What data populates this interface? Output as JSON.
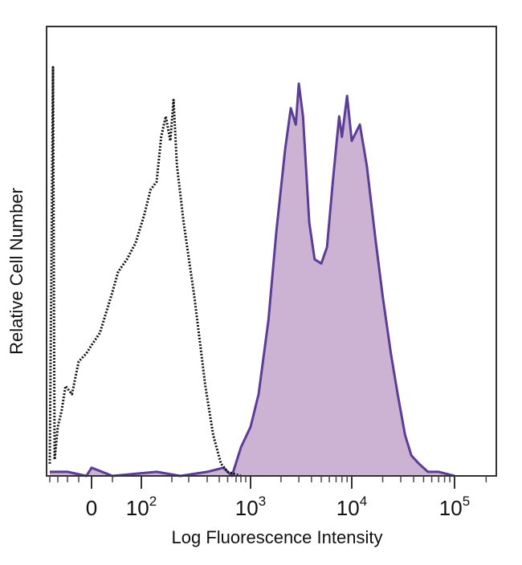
{
  "chart_data": {
    "type": "area",
    "title": "",
    "xlabel": "Log Fluorescence Intensity",
    "ylabel": "Relative Cell Number",
    "x_scale": "biexponential",
    "x_ticks": [
      {
        "value": 0,
        "base": "0",
        "exp": ""
      },
      {
        "value": 100,
        "base": "10",
        "exp": "2"
      },
      {
        "value": 1000,
        "base": "10",
        "exp": "3"
      },
      {
        "value": 10000,
        "base": "10",
        "exp": "4"
      },
      {
        "value": 100000,
        "base": "10",
        "exp": "5"
      }
    ],
    "xlim": [
      -250,
      250000
    ],
    "ylim": [
      0,
      110
    ],
    "grid": false,
    "series": [
      {
        "style": "dotted-black-outline",
        "color": "#111111",
        "points": [
          [
            -200,
            3
          ],
          [
            -180,
            100
          ],
          [
            -170,
            4
          ],
          [
            -150,
            12
          ],
          [
            -130,
            16
          ],
          [
            -110,
            22
          ],
          [
            -80,
            20
          ],
          [
            -50,
            28
          ],
          [
            -20,
            30
          ],
          [
            0,
            32
          ],
          [
            20,
            35
          ],
          [
            35,
            40
          ],
          [
            50,
            45
          ],
          [
            60,
            50
          ],
          [
            75,
            53
          ],
          [
            90,
            57
          ],
          [
            110,
            64
          ],
          [
            130,
            70
          ],
          [
            150,
            72
          ],
          [
            165,
            83
          ],
          [
            180,
            88
          ],
          [
            195,
            82
          ],
          [
            210,
            92
          ],
          [
            230,
            76
          ],
          [
            270,
            62
          ],
          [
            330,
            44
          ],
          [
            390,
            22
          ],
          [
            450,
            10
          ],
          [
            520,
            3
          ],
          [
            600,
            1
          ],
          [
            800,
            0
          ]
        ]
      },
      {
        "style": "filled-purple",
        "color": "#5a3d96",
        "fill": "#ccb3d3",
        "points": [
          [
            -200,
            1
          ],
          [
            -100,
            1
          ],
          [
            -20,
            0
          ],
          [
            0,
            2
          ],
          [
            50,
            0
          ],
          [
            150,
            1
          ],
          [
            250,
            0
          ],
          [
            400,
            1
          ],
          [
            550,
            2
          ],
          [
            650,
            0
          ],
          [
            800,
            7
          ],
          [
            1000,
            12
          ],
          [
            1200,
            20
          ],
          [
            1500,
            38
          ],
          [
            1800,
            60
          ],
          [
            2200,
            80
          ],
          [
            2500,
            90
          ],
          [
            2800,
            86
          ],
          [
            3000,
            96
          ],
          [
            3300,
            88
          ],
          [
            3800,
            62
          ],
          [
            4300,
            53
          ],
          [
            5000,
            52
          ],
          [
            5700,
            56
          ],
          [
            6500,
            72
          ],
          [
            7500,
            88
          ],
          [
            8000,
            83
          ],
          [
            9000,
            93
          ],
          [
            10000,
            82
          ],
          [
            12000,
            86
          ],
          [
            14000,
            76
          ],
          [
            17000,
            58
          ],
          [
            20000,
            44
          ],
          [
            24000,
            30
          ],
          [
            28000,
            20
          ],
          [
            33000,
            10
          ],
          [
            38000,
            5
          ],
          [
            45000,
            3
          ],
          [
            55000,
            1
          ],
          [
            70000,
            1
          ],
          [
            100000,
            0
          ]
        ]
      }
    ]
  }
}
